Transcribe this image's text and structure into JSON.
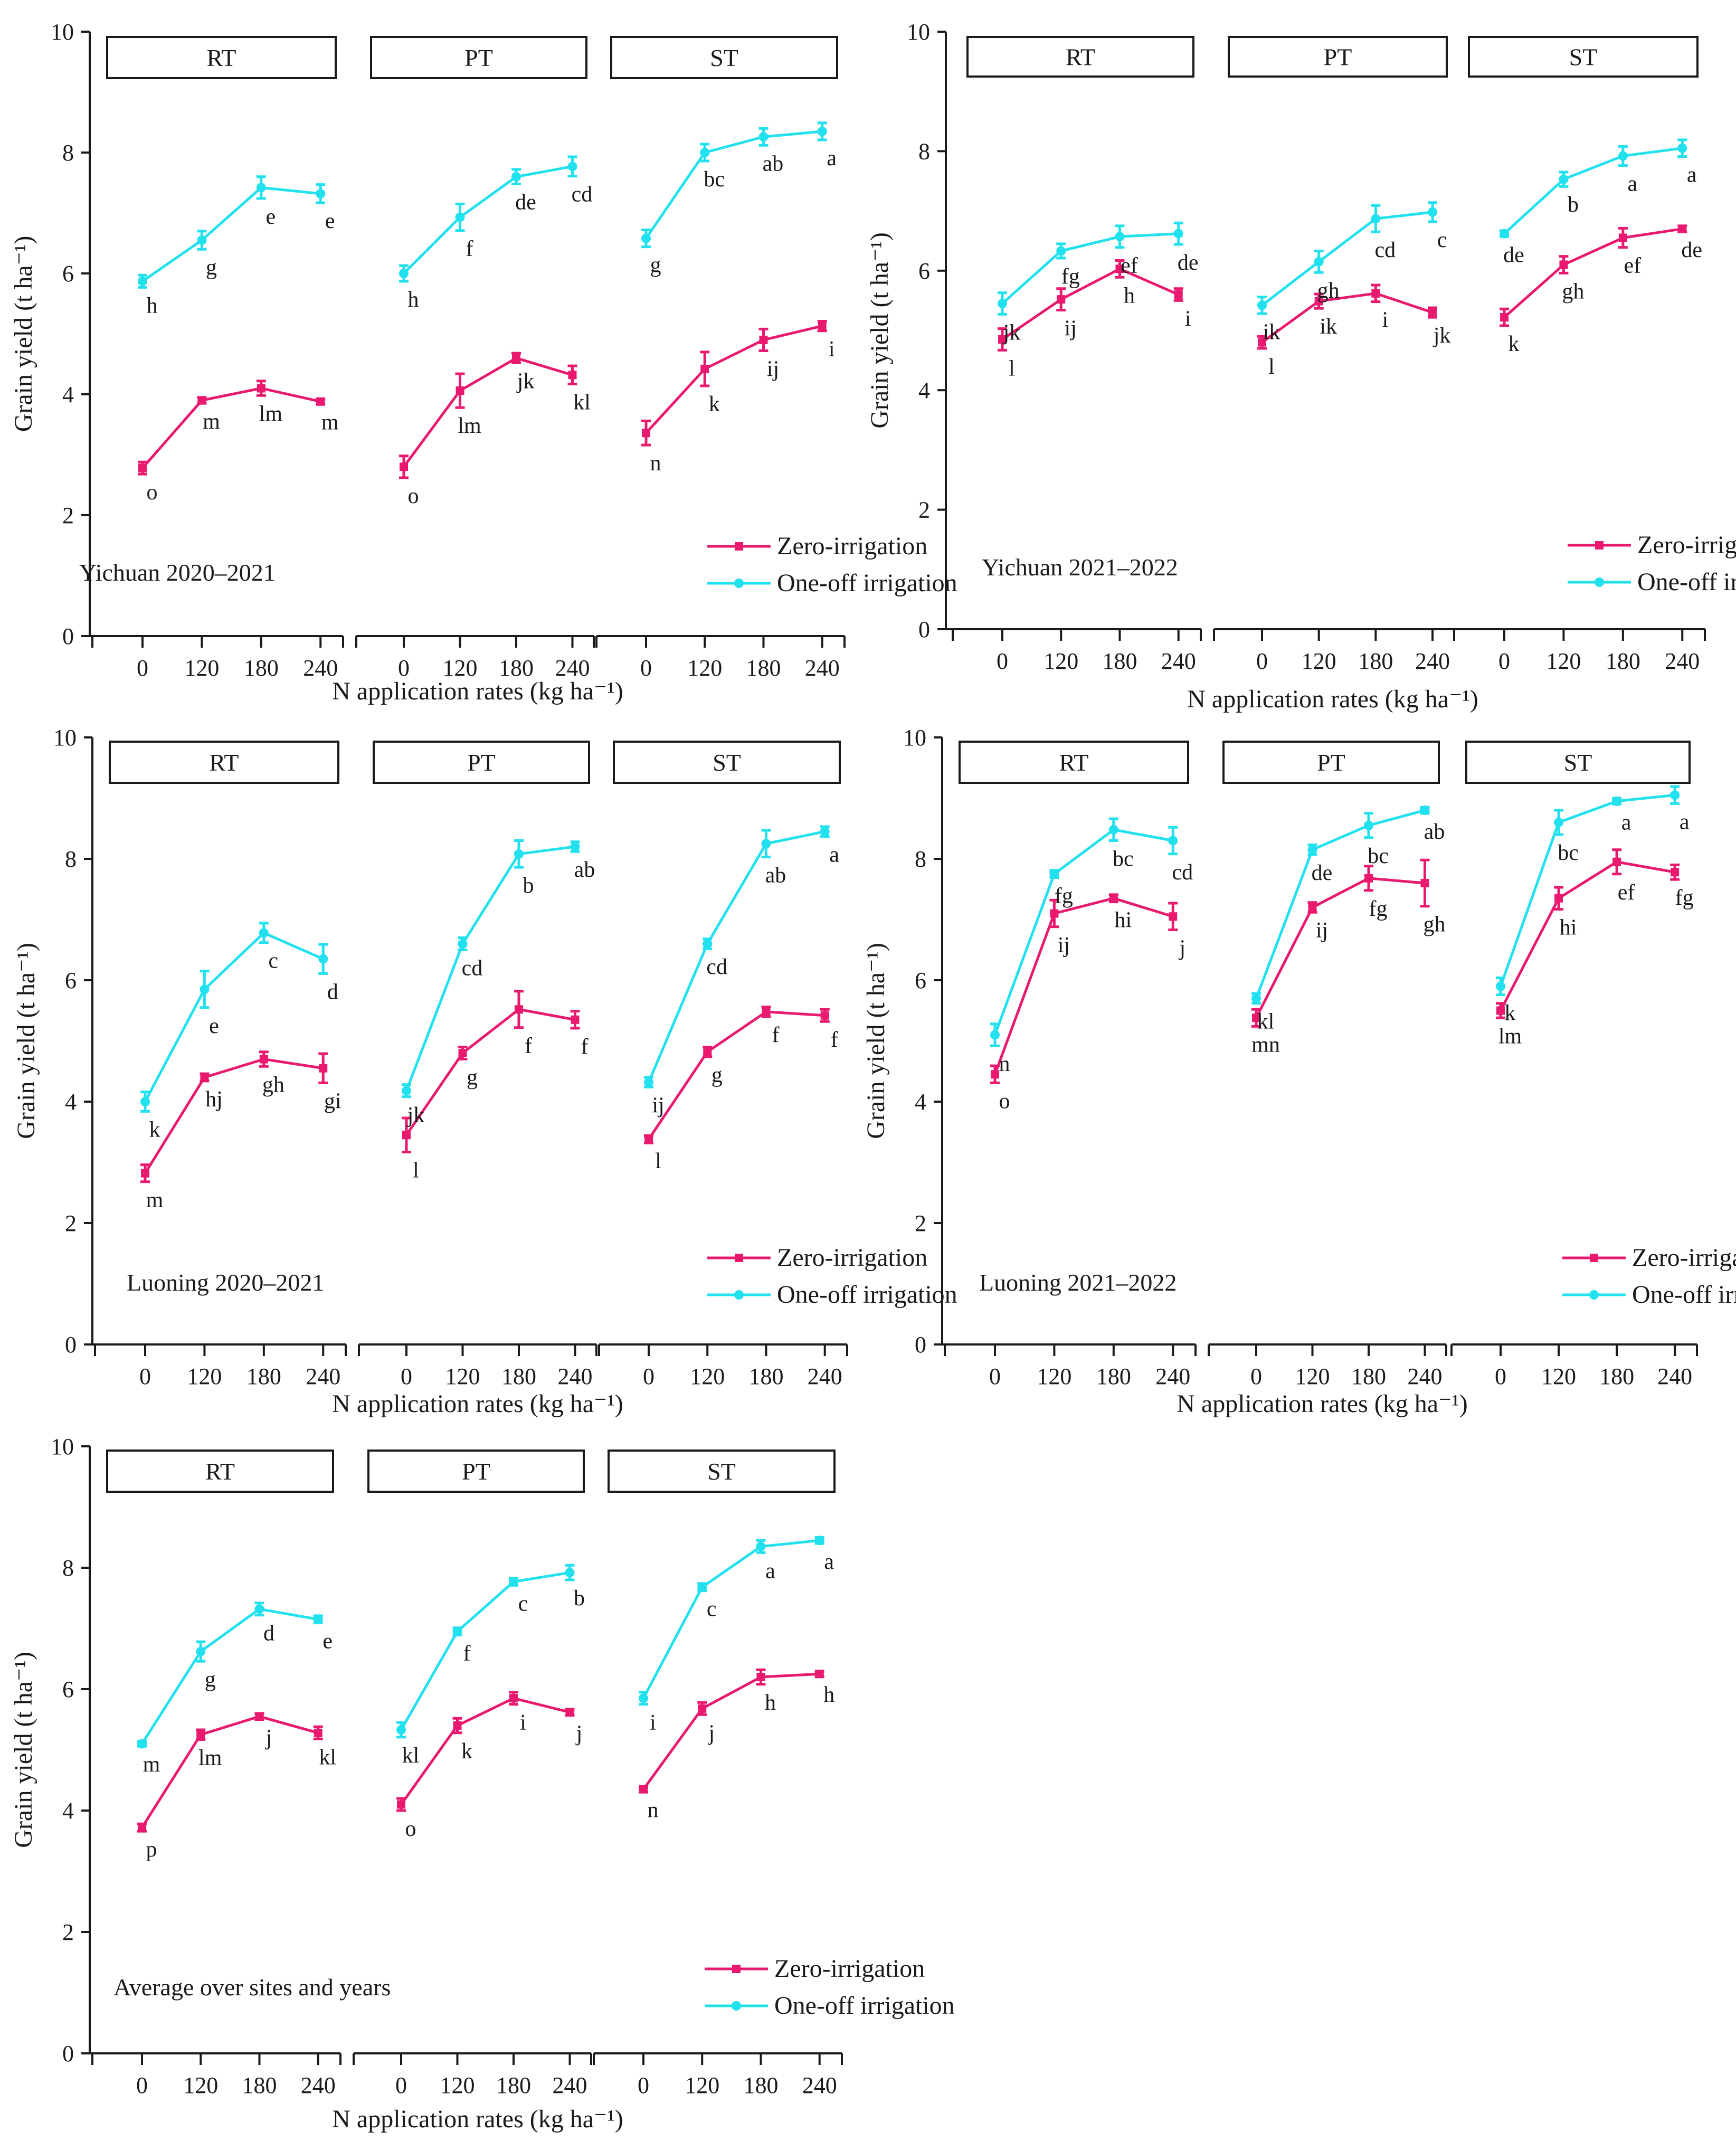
{
  "colors": {
    "zero": "#e8196f",
    "one": "#22e1ef",
    "axis": "#1a1a1a"
  },
  "legend": {
    "zero": "Zero-irrigation",
    "one": "One-off irrigation"
  },
  "chart_data": [
    {
      "type": "line",
      "panel": "Yichuan 2020–2021",
      "xlabel": "N application rates (kg ha⁻¹)",
      "ylabel": "Grain yield (t ha⁻¹)",
      "ylim": [
        0,
        10
      ],
      "yticks": [
        "0",
        "2",
        "4",
        "6",
        "8",
        "10"
      ],
      "categories": [
        "0",
        "120",
        "180",
        "240"
      ],
      "facets": [
        {
          "name": "RT",
          "series": [
            {
              "name": "Zero-irrigation",
              "values": [
                2.78,
                3.9,
                4.1,
                3.88
              ],
              "errors": [
                0.1,
                0.05,
                0.12,
                0.04
              ],
              "letters": [
                "o",
                "m",
                "lm",
                "m"
              ]
            },
            {
              "name": "One-off irrigation",
              "values": [
                5.87,
                6.55,
                7.42,
                7.32
              ],
              "errors": [
                0.1,
                0.15,
                0.18,
                0.15
              ],
              "letters": [
                "h",
                "g",
                "e",
                "e"
              ]
            }
          ]
        },
        {
          "name": "PT",
          "series": [
            {
              "name": "Zero-irrigation",
              "values": [
                2.8,
                4.06,
                4.6,
                4.32
              ],
              "errors": [
                0.18,
                0.28,
                0.08,
                0.15
              ],
              "letters": [
                "o",
                "lm",
                "jk",
                "kl"
              ]
            },
            {
              "name": "One-off irrigation",
              "values": [
                6.0,
                6.93,
                7.6,
                7.77
              ],
              "errors": [
                0.13,
                0.22,
                0.12,
                0.16
              ],
              "letters": [
                "h",
                "f",
                "de",
                "cd"
              ]
            }
          ]
        },
        {
          "name": "ST",
          "series": [
            {
              "name": "Zero-irrigation",
              "values": [
                3.36,
                4.42,
                4.9,
                5.13
              ],
              "errors": [
                0.2,
                0.28,
                0.18,
                0.08
              ],
              "letters": [
                "n",
                "k",
                "ij",
                "i"
              ]
            },
            {
              "name": "One-off irrigation",
              "values": [
                6.58,
                8.0,
                8.26,
                8.35
              ],
              "errors": [
                0.14,
                0.14,
                0.14,
                0.14
              ],
              "letters": [
                "g",
                "bc",
                "ab",
                "a"
              ]
            }
          ]
        }
      ]
    },
    {
      "type": "line",
      "panel": "Yichuan 2021–2022",
      "xlabel": "N application rates (kg ha⁻¹)",
      "ylabel": "Grain yield (t ha⁻¹)",
      "ylim": [
        0,
        10
      ],
      "yticks": [
        "0",
        "2",
        "4",
        "6",
        "8",
        "10"
      ],
      "categories": [
        "0",
        "120",
        "180",
        "240"
      ],
      "facets": [
        {
          "name": "RT",
          "series": [
            {
              "name": "Zero-irrigation",
              "values": [
                4.85,
                5.52,
                6.03,
                5.6
              ],
              "errors": [
                0.18,
                0.18,
                0.14,
                0.1
              ],
              "letters": [
                "l",
                "ij",
                "h",
                "i"
              ]
            },
            {
              "name": "One-off irrigation",
              "values": [
                5.45,
                6.33,
                6.57,
                6.62
              ],
              "errors": [
                0.18,
                0.12,
                0.18,
                0.18
              ],
              "letters": [
                "jk",
                "fg",
                "ef",
                "de"
              ]
            }
          ]
        },
        {
          "name": "PT",
          "series": [
            {
              "name": "Zero-irrigation",
              "values": [
                4.8,
                5.49,
                5.62,
                5.3
              ],
              "errors": [
                0.1,
                0.12,
                0.14,
                0.08
              ],
              "letters": [
                "l",
                "ik",
                "i",
                "jk"
              ]
            },
            {
              "name": "One-off irrigation",
              "values": [
                5.42,
                6.15,
                6.87,
                6.98
              ],
              "errors": [
                0.14,
                0.18,
                0.22,
                0.16
              ],
              "letters": [
                "ik",
                "gh",
                "cd",
                "c"
              ]
            }
          ]
        },
        {
          "name": "ST",
          "series": [
            {
              "name": "Zero-irrigation",
              "values": [
                5.22,
                6.1,
                6.55,
                6.7
              ],
              "errors": [
                0.14,
                0.14,
                0.16,
                0.05
              ],
              "letters": [
                "k",
                "gh",
                "ef",
                "de"
              ]
            },
            {
              "name": "One-off irrigation",
              "values": [
                6.62,
                7.53,
                7.92,
                8.05
              ],
              "errors": [
                0.05,
                0.12,
                0.16,
                0.14
              ],
              "letters": [
                "de",
                "b",
                "a",
                "a"
              ]
            }
          ]
        }
      ]
    },
    {
      "type": "line",
      "panel": "Luoning 2020–2021",
      "xlabel": "N application rates (kg ha⁻¹)",
      "ylabel": "Grain yield (t ha⁻¹)",
      "ylim": [
        0,
        10
      ],
      "yticks": [
        "0",
        "2",
        "4",
        "6",
        "8",
        "10"
      ],
      "categories": [
        "0",
        "120",
        "180",
        "240"
      ],
      "facets": [
        {
          "name": "RT",
          "series": [
            {
              "name": "Zero-irrigation",
              "values": [
                2.82,
                4.4,
                4.7,
                4.55
              ],
              "errors": [
                0.14,
                0.06,
                0.12,
                0.24
              ],
              "letters": [
                "m",
                "hj",
                "gh",
                "gi"
              ]
            },
            {
              "name": "One-off irrigation",
              "values": [
                4.0,
                5.85,
                6.78,
                6.35
              ],
              "errors": [
                0.16,
                0.3,
                0.16,
                0.24
              ],
              "letters": [
                "k",
                "e",
                "c",
                "d"
              ]
            }
          ]
        },
        {
          "name": "PT",
          "series": [
            {
              "name": "Zero-irrigation",
              "values": [
                3.45,
                4.8,
                5.52,
                5.35
              ],
              "errors": [
                0.28,
                0.1,
                0.3,
                0.14
              ],
              "letters": [
                "l",
                "g",
                "f",
                "f"
              ]
            },
            {
              "name": "One-off irrigation",
              "values": [
                4.18,
                6.6,
                8.08,
                8.2
              ],
              "errors": [
                0.1,
                0.1,
                0.22,
                0.08
              ],
              "letters": [
                "jk",
                "cd",
                "b",
                "ab"
              ]
            }
          ]
        },
        {
          "name": "ST",
          "series": [
            {
              "name": "Zero-irrigation",
              "values": [
                3.38,
                4.82,
                5.48,
                5.42
              ],
              "errors": [
                0.06,
                0.08,
                0.08,
                0.1
              ],
              "letters": [
                "l",
                "g",
                "f",
                "f"
              ]
            },
            {
              "name": "One-off irrigation",
              "values": [
                4.32,
                6.6,
                8.25,
                8.45
              ],
              "errors": [
                0.08,
                0.08,
                0.22,
                0.08
              ],
              "letters": [
                "ij",
                "cd",
                "ab",
                "a"
              ]
            }
          ]
        }
      ]
    },
    {
      "type": "line",
      "panel": "Luoning 2021–2022",
      "xlabel": "N application rates (kg ha⁻¹)",
      "ylabel": "Grain yield (t ha⁻¹)",
      "ylim": [
        0,
        10
      ],
      "yticks": [
        "0",
        "2",
        "4",
        "6",
        "8",
        "10"
      ],
      "categories": [
        "0",
        "120",
        "180",
        "240"
      ],
      "facets": [
        {
          "name": "RT",
          "series": [
            {
              "name": "Zero-irrigation",
              "values": [
                4.45,
                7.1,
                7.35,
                7.05
              ],
              "errors": [
                0.14,
                0.22,
                0.06,
                0.22
              ],
              "letters": [
                "o",
                "ij",
                "hi",
                "j"
              ]
            },
            {
              "name": "One-off irrigation",
              "values": [
                5.1,
                7.75,
                8.48,
                8.3
              ],
              "errors": [
                0.18,
                0.06,
                0.18,
                0.22
              ],
              "letters": [
                "n",
                "fg",
                "bc",
                "cd"
              ]
            }
          ]
        },
        {
          "name": "PT",
          "series": [
            {
              "name": "Zero-irrigation",
              "values": [
                5.38,
                7.2,
                7.68,
                7.6
              ],
              "errors": [
                0.14,
                0.08,
                0.2,
                0.38
              ],
              "letters": [
                "mn",
                "ij",
                "fg",
                "gh"
              ]
            },
            {
              "name": "One-off irrigation",
              "values": [
                5.7,
                8.15,
                8.55,
                8.8
              ],
              "errors": [
                0.08,
                0.08,
                0.2,
                0.05
              ],
              "letters": [
                "kl",
                "de",
                "bc",
                "ab"
              ]
            }
          ]
        },
        {
          "name": "ST",
          "series": [
            {
              "name": "Zero-irrigation",
              "values": [
                5.5,
                7.35,
                7.95,
                7.78
              ],
              "errors": [
                0.12,
                0.18,
                0.2,
                0.12
              ],
              "letters": [
                "lm",
                "hi",
                "ef",
                "fg"
              ]
            },
            {
              "name": "One-off irrigation",
              "values": [
                5.9,
                8.6,
                8.95,
                9.05
              ],
              "errors": [
                0.14,
                0.2,
                0.05,
                0.14
              ],
              "letters": [
                "k",
                "bc",
                "a",
                "a"
              ]
            }
          ]
        }
      ]
    },
    {
      "type": "line",
      "panel": "Average over sites and years",
      "xlabel": "N application rates (kg ha⁻¹)",
      "ylabel": "Grain yield (t ha⁻¹)",
      "ylim": [
        0,
        10
      ],
      "yticks": [
        "0",
        "2",
        "4",
        "6",
        "8",
        "10"
      ],
      "categories": [
        "0",
        "120",
        "180",
        "240"
      ],
      "facets": [
        {
          "name": "RT",
          "series": [
            {
              "name": "Zero-irrigation",
              "values": [
                3.72,
                5.25,
                5.55,
                5.28
              ],
              "errors": [
                0.06,
                0.08,
                0.05,
                0.1
              ],
              "letters": [
                "p",
                "lm",
                "j",
                "kl"
              ]
            },
            {
              "name": "One-off irrigation",
              "values": [
                5.1,
                6.62,
                7.32,
                7.15
              ],
              "errors": [
                0.04,
                0.16,
                0.1,
                0.06
              ],
              "letters": [
                "m",
                "g",
                "d",
                "e"
              ]
            }
          ]
        },
        {
          "name": "PT",
          "series": [
            {
              "name": "Zero-irrigation",
              "values": [
                4.1,
                5.4,
                5.85,
                5.62
              ],
              "errors": [
                0.1,
                0.12,
                0.1,
                0.05
              ],
              "letters": [
                "o",
                "k",
                "i",
                "j"
              ]
            },
            {
              "name": "One-off irrigation",
              "values": [
                5.33,
                6.95,
                7.77,
                7.92
              ],
              "errors": [
                0.12,
                0.06,
                0.06,
                0.12
              ],
              "letters": [
                "kl",
                "f",
                "c",
                "b"
              ]
            }
          ]
        },
        {
          "name": "ST",
          "series": [
            {
              "name": "Zero-irrigation",
              "values": [
                4.35,
                5.68,
                6.2,
                6.25
              ],
              "errors": [
                0.04,
                0.1,
                0.12,
                0.04
              ],
              "letters": [
                "n",
                "j",
                "h",
                "h"
              ]
            },
            {
              "name": "One-off irrigation",
              "values": [
                5.85,
                7.68,
                8.35,
                8.45
              ],
              "errors": [
                0.1,
                0.06,
                0.1,
                0.05
              ],
              "letters": [
                "i",
                "c",
                "a",
                "a"
              ]
            }
          ]
        }
      ]
    }
  ]
}
